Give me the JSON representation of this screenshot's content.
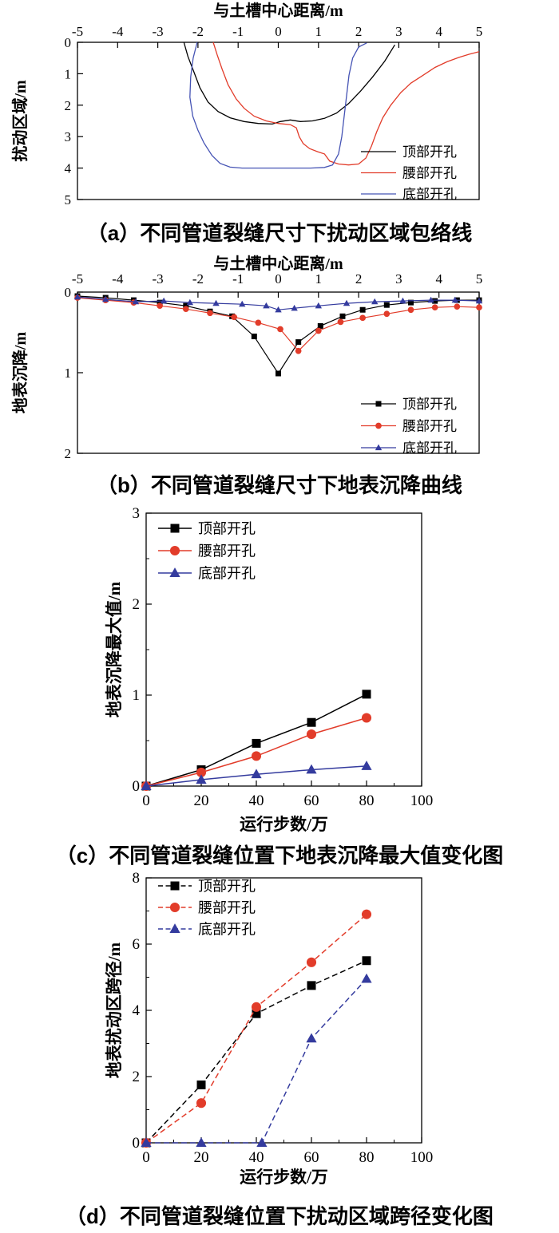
{
  "figure": {
    "captions": {
      "a": "（a）不同管道裂缝尺寸下扰动区域包络线",
      "b": "（b）不同管道裂缝尺寸下地表沉降曲线",
      "c": "（c）不同管道裂缝位置下地表沉降最大值变化图",
      "d": "（d）不同管道裂缝位置下扰动区域跨径变化图"
    }
  },
  "colors": {
    "black": "#000000",
    "red": "#e23c2a",
    "blue_line": "#4553b4",
    "blue_marker": "#343b9e"
  },
  "chart_data": [
    {
      "id": "a",
      "type": "line",
      "xlabel": "与土槽中心距离/m",
      "xlabel_position": "top",
      "ylabel": "扰动区域/m",
      "xlim": [
        -5,
        5
      ],
      "ylim": [
        0,
        5
      ],
      "y_inverted": true,
      "xticks": [
        -5,
        -4,
        -3,
        -2,
        -1,
        0,
        1,
        2,
        3,
        4,
        5
      ],
      "yticks": [
        0,
        1,
        2,
        3,
        4,
        5
      ],
      "grid": false,
      "legend_position": "inside-right-bottom",
      "series": [
        {
          "name": "顶部开孔",
          "color": "#000000",
          "line": "solid",
          "marker": "none",
          "points": [
            [
              -2.35,
              0
            ],
            [
              -2.25,
              0.45
            ],
            [
              -2.1,
              0.95
            ],
            [
              -1.95,
              1.45
            ],
            [
              -1.75,
              1.9
            ],
            [
              -1.5,
              2.2
            ],
            [
              -1.2,
              2.4
            ],
            [
              -0.85,
              2.52
            ],
            [
              -0.5,
              2.58
            ],
            [
              -0.15,
              2.6
            ],
            [
              0.05,
              2.52
            ],
            [
              0.3,
              2.47
            ],
            [
              0.55,
              2.52
            ],
            [
              0.85,
              2.5
            ],
            [
              1.15,
              2.42
            ],
            [
              1.45,
              2.25
            ],
            [
              1.75,
              1.95
            ],
            [
              2.05,
              1.55
            ],
            [
              2.35,
              1.1
            ],
            [
              2.65,
              0.6
            ],
            [
              2.9,
              0.08
            ]
          ]
        },
        {
          "name": "腰部开孔",
          "color": "#e23c2a",
          "line": "solid",
          "marker": "none",
          "points": [
            [
              -1.62,
              0
            ],
            [
              -1.52,
              0.4
            ],
            [
              -1.4,
              0.85
            ],
            [
              -1.25,
              1.35
            ],
            [
              -1.05,
              1.8
            ],
            [
              -0.85,
              2.1
            ],
            [
              -0.6,
              2.35
            ],
            [
              -0.3,
              2.5
            ],
            [
              0,
              2.58
            ],
            [
              0.3,
              2.62
            ],
            [
              0.45,
              2.72
            ],
            [
              0.52,
              3.0
            ],
            [
              0.62,
              3.22
            ],
            [
              0.78,
              3.38
            ],
            [
              0.98,
              3.48
            ],
            [
              1.15,
              3.55
            ],
            [
              1.28,
              3.78
            ],
            [
              1.5,
              3.87
            ],
            [
              1.75,
              3.9
            ],
            [
              2.0,
              3.87
            ],
            [
              2.18,
              3.68
            ],
            [
              2.32,
              3.3
            ],
            [
              2.45,
              2.85
            ],
            [
              2.6,
              2.4
            ],
            [
              2.8,
              2.0
            ],
            [
              3.05,
              1.6
            ],
            [
              3.3,
              1.3
            ],
            [
              3.6,
              1.05
            ],
            [
              3.9,
              0.8
            ],
            [
              4.2,
              0.62
            ],
            [
              4.5,
              0.48
            ],
            [
              4.75,
              0.38
            ],
            [
              5,
              0.3
            ]
          ]
        },
        {
          "name": "底部开孔",
          "color": "#4553b4",
          "line": "solid",
          "marker": "none",
          "points": [
            [
              -2.02,
              0
            ],
            [
              -2.12,
              0.5
            ],
            [
              -2.18,
              1.1
            ],
            [
              -2.2,
              1.75
            ],
            [
              -2.13,
              2.35
            ],
            [
              -2.0,
              2.8
            ],
            [
              -1.85,
              3.2
            ],
            [
              -1.65,
              3.6
            ],
            [
              -1.45,
              3.85
            ],
            [
              -1.2,
              3.97
            ],
            [
              -0.9,
              4.0
            ],
            [
              -0.4,
              4.0
            ],
            [
              0.2,
              4.0
            ],
            [
              0.8,
              4.0
            ],
            [
              1.15,
              3.98
            ],
            [
              1.35,
              3.9
            ],
            [
              1.5,
              3.55
            ],
            [
              1.58,
              3.0
            ],
            [
              1.64,
              2.35
            ],
            [
              1.7,
              1.7
            ],
            [
              1.76,
              1.05
            ],
            [
              1.85,
              0.5
            ],
            [
              2.0,
              0.15
            ],
            [
              2.2,
              0.02
            ]
          ]
        }
      ]
    },
    {
      "id": "b",
      "type": "line",
      "xlabel": "与土槽中心距离/m",
      "xlabel_position": "top",
      "ylabel": "地表沉降/m",
      "xlim": [
        -5,
        5
      ],
      "ylim": [
        0,
        2
      ],
      "y_inverted": true,
      "xticks": [
        -5,
        -4,
        -3,
        -2,
        -1,
        0,
        1,
        2,
        3,
        4,
        5
      ],
      "yticks": [
        0,
        1,
        2
      ],
      "grid": false,
      "legend_position": "inside-right-bottom",
      "series": [
        {
          "name": "顶部开孔",
          "color": "#000000",
          "line": "solid",
          "marker": "square",
          "points": [
            [
              -5,
              0.05
            ],
            [
              -4.3,
              0.07
            ],
            [
              -3.6,
              0.1
            ],
            [
              -2.95,
              0.13
            ],
            [
              -2.3,
              0.17
            ],
            [
              -1.7,
              0.24
            ],
            [
              -1.15,
              0.3
            ],
            [
              -0.6,
              0.55
            ],
            [
              0,
              1.01
            ],
            [
              0.5,
              0.62
            ],
            [
              1.05,
              0.42
            ],
            [
              1.6,
              0.3
            ],
            [
              2.1,
              0.22
            ],
            [
              2.7,
              0.16
            ],
            [
              3.3,
              0.13
            ],
            [
              3.9,
              0.11
            ],
            [
              4.45,
              0.1
            ],
            [
              5,
              0.1
            ]
          ]
        },
        {
          "name": "腰部开孔",
          "color": "#e23c2a",
          "line": "solid",
          "marker": "circle",
          "points": [
            [
              -5,
              0.07
            ],
            [
              -4.3,
              0.1
            ],
            [
              -3.6,
              0.13
            ],
            [
              -2.95,
              0.17
            ],
            [
              -2.3,
              0.21
            ],
            [
              -1.7,
              0.26
            ],
            [
              -1.1,
              0.31
            ],
            [
              -0.5,
              0.38
            ],
            [
              0.05,
              0.46
            ],
            [
              0.5,
              0.73
            ],
            [
              1.0,
              0.48
            ],
            [
              1.55,
              0.37
            ],
            [
              2.1,
              0.32
            ],
            [
              2.7,
              0.27
            ],
            [
              3.3,
              0.22
            ],
            [
              3.9,
              0.19
            ],
            [
              4.45,
              0.18
            ],
            [
              5,
              0.19
            ]
          ]
        },
        {
          "name": "底部开孔",
          "color": "#343b9e",
          "line": "solid",
          "marker": "triangle",
          "points": [
            [
              -5,
              0.06
            ],
            [
              -4.3,
              0.09
            ],
            [
              -3.55,
              0.12
            ],
            [
              -2.85,
              0.11
            ],
            [
              -2.2,
              0.13
            ],
            [
              -1.55,
              0.14
            ],
            [
              -0.9,
              0.15
            ],
            [
              -0.3,
              0.17
            ],
            [
              0,
              0.22
            ],
            [
              0.4,
              0.2
            ],
            [
              1.0,
              0.17
            ],
            [
              1.7,
              0.14
            ],
            [
              2.4,
              0.12
            ],
            [
              3.1,
              0.11
            ],
            [
              3.8,
              0.1
            ],
            [
              4.4,
              0.1
            ],
            [
              5,
              0.11
            ]
          ]
        }
      ]
    },
    {
      "id": "c",
      "type": "line",
      "xlabel": "运行步数/万",
      "xlabel_position": "bottom",
      "ylabel": "地表沉降最大值/m",
      "xlim": [
        0,
        100
      ],
      "ylim": [
        0,
        3
      ],
      "y_inverted": false,
      "xticks": [
        0,
        20,
        40,
        60,
        80,
        100
      ],
      "yticks": [
        0,
        1,
        2,
        3
      ],
      "minor_x_step": 10,
      "minor_y_step": 0.5,
      "grid": false,
      "legend_position": "inside-top-left",
      "series": [
        {
          "name": "顶部开孔",
          "color": "#000000",
          "line": "solid",
          "marker": "square",
          "points": [
            [
              0,
              0
            ],
            [
              20,
              0.18
            ],
            [
              40,
              0.47
            ],
            [
              60,
              0.7
            ],
            [
              80,
              1.01
            ]
          ]
        },
        {
          "name": "腰部开孔",
          "color": "#e23c2a",
          "line": "solid",
          "marker": "circle",
          "points": [
            [
              0,
              0
            ],
            [
              20,
              0.15
            ],
            [
              40,
              0.33
            ],
            [
              60,
              0.57
            ],
            [
              80,
              0.75
            ]
          ]
        },
        {
          "name": "底部开孔",
          "color": "#343b9e",
          "line": "solid",
          "marker": "triangle",
          "points": [
            [
              0,
              0
            ],
            [
              20,
              0.07
            ],
            [
              40,
              0.13
            ],
            [
              60,
              0.18
            ],
            [
              80,
              0.22
            ]
          ]
        }
      ]
    },
    {
      "id": "d",
      "type": "line",
      "xlabel": "运行步数/万",
      "xlabel_position": "bottom",
      "ylabel": "地表扰动区跨径/m",
      "xlim": [
        0,
        100
      ],
      "ylim": [
        0,
        8
      ],
      "y_inverted": false,
      "xticks": [
        0,
        20,
        40,
        60,
        80,
        100
      ],
      "yticks": [
        0,
        2,
        4,
        6,
        8
      ],
      "minor_x_step": 10,
      "minor_y_step": 1,
      "grid": false,
      "legend_position": "inside-top-left",
      "series": [
        {
          "name": "顶部开孔",
          "color": "#000000",
          "line": "dashed",
          "marker": "square",
          "points": [
            [
              0,
              0
            ],
            [
              20,
              1.75
            ],
            [
              40,
              3.9
            ],
            [
              60,
              4.75
            ],
            [
              80,
              5.5
            ]
          ]
        },
        {
          "name": "腰部开孔",
          "color": "#e23c2a",
          "line": "dashed",
          "marker": "circle",
          "points": [
            [
              0,
              0
            ],
            [
              20,
              1.2
            ],
            [
              40,
              4.1
            ],
            [
              60,
              5.45
            ],
            [
              80,
              6.9
            ]
          ]
        },
        {
          "name": "底部开孔",
          "color": "#343b9e",
          "line": "dashed",
          "marker": "triangle",
          "points": [
            [
              0,
              0
            ],
            [
              20,
              0
            ],
            [
              42,
              0
            ],
            [
              60,
              3.15
            ],
            [
              80,
              4.95
            ]
          ]
        }
      ]
    }
  ]
}
